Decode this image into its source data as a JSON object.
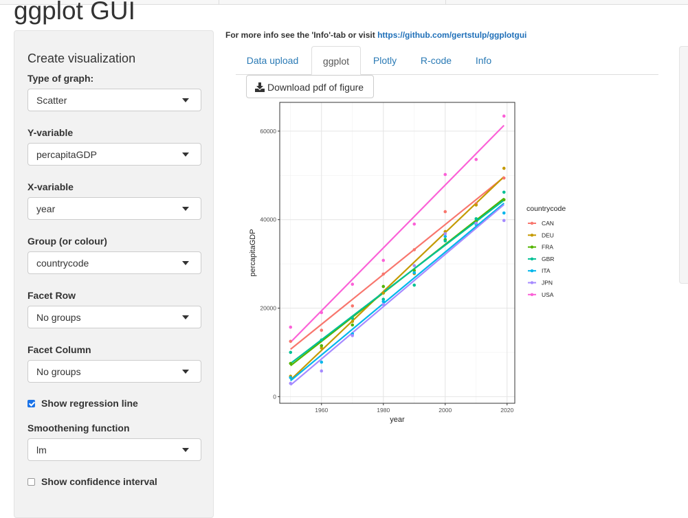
{
  "app": {
    "title": "ggplot GUI"
  },
  "sidebar": {
    "title": "Create visualization",
    "graph_type": {
      "label": "Type of graph:",
      "value": "Scatter"
    },
    "y_variable": {
      "label": "Y-variable",
      "value": "percapitaGDP"
    },
    "x_variable": {
      "label": "X-variable",
      "value": "year"
    },
    "group": {
      "label": "Group (or colour)",
      "value": "countrycode"
    },
    "facet_row": {
      "label": "Facet Row",
      "value": "No groups"
    },
    "facet_column": {
      "label": "Facet Column",
      "value": "No groups"
    },
    "regression": {
      "label": "Show regression line",
      "checked": true
    },
    "smoothing": {
      "label": "Smoothening function",
      "value": "lm"
    },
    "confidence": {
      "label": "Show confidence interval",
      "checked": false
    }
  },
  "main": {
    "info_text": "For more info see the 'Info'-tab or visit ",
    "info_link": "https://github.com/gertstulp/ggplotgui",
    "tabs": [
      {
        "label": "Data upload",
        "active": false
      },
      {
        "label": "ggplot",
        "active": true
      },
      {
        "label": "Plotly",
        "active": false
      },
      {
        "label": "R-code",
        "active": false
      },
      {
        "label": "Info",
        "active": false
      }
    ],
    "download_button": "Download pdf of figure",
    "download_icon": "download-icon"
  },
  "colors": {
    "link": "#1e6fb8",
    "checkbox_accent": "#1a73e8"
  },
  "chart_data": {
    "type": "scatter",
    "title": "",
    "xlabel": "year",
    "ylabel": "percapitaGDP",
    "xlim": [
      1946.5,
      2022.5
    ],
    "ylim": [
      -1500,
      66500
    ],
    "x_ticks": [
      1960,
      1980,
      2000,
      2020
    ],
    "x_tick_labels": [
      "1960",
      "1980",
      "2000",
      "2020"
    ],
    "y_ticks": [
      0,
      20000,
      40000,
      60000
    ],
    "y_tick_labels": [
      "0",
      "20000",
      "40000",
      "60000"
    ],
    "grid": true,
    "legend": {
      "title": "countrycode",
      "position": "right"
    },
    "regression_lines": true,
    "series": [
      {
        "name": "CAN",
        "color": "#F8766D",
        "points": [
          [
            1950,
            12500
          ],
          [
            1960,
            15000
          ],
          [
            1970,
            20500
          ],
          [
            1980,
            27700
          ],
          [
            1990,
            33200
          ],
          [
            2000,
            41800
          ],
          [
            2010,
            43600
          ],
          [
            2019,
            49400
          ]
        ],
        "fit": [
          [
            1950,
            10700
          ],
          [
            2019,
            49600
          ]
        ]
      },
      {
        "name": "DEU",
        "color": "#C49A00",
        "points": [
          [
            1950,
            4600
          ],
          [
            1960,
            11000
          ],
          [
            1970,
            17000
          ],
          [
            1980,
            23400
          ],
          [
            1990,
            27800
          ],
          [
            2000,
            37300
          ],
          [
            2010,
            43300
          ],
          [
            2019,
            51600
          ]
        ],
        "fit": [
          [
            1950,
            3800
          ],
          [
            2019,
            49700
          ]
        ]
      },
      {
        "name": "FRA",
        "color": "#53B400",
        "points": [
          [
            1950,
            7500
          ],
          [
            1960,
            11500
          ],
          [
            1970,
            16200
          ],
          [
            1980,
            24900
          ],
          [
            1990,
            28500
          ],
          [
            2000,
            35500
          ],
          [
            2010,
            39600
          ],
          [
            2019,
            44500
          ]
        ],
        "fit": [
          [
            1950,
            7000
          ],
          [
            2019,
            44800
          ]
        ]
      },
      {
        "name": "GBR",
        "color": "#00C094",
        "points": [
          [
            1950,
            10000
          ],
          [
            1960,
            12800
          ],
          [
            1970,
            17700
          ],
          [
            1980,
            22000
          ],
          [
            1990,
            25200
          ],
          [
            2000,
            35200
          ],
          [
            2010,
            40200
          ],
          [
            2019,
            46200
          ]
        ],
        "fit": [
          [
            1950,
            7500
          ],
          [
            2019,
            44400
          ]
        ]
      },
      {
        "name": "ITA",
        "color": "#00B6EB",
        "points": [
          [
            1950,
            4300
          ],
          [
            1960,
            7800
          ],
          [
            1970,
            14200
          ],
          [
            1980,
            21500
          ],
          [
            1990,
            28000
          ],
          [
            2000,
            36200
          ],
          [
            2010,
            38900
          ],
          [
            2019,
            41500
          ]
        ],
        "fit": [
          [
            1950,
            3600
          ],
          [
            2019,
            43700
          ]
        ]
      },
      {
        "name": "JPN",
        "color": "#A58AFF",
        "points": [
          [
            1950,
            3000
          ],
          [
            1960,
            5800
          ],
          [
            1970,
            13800
          ],
          [
            1980,
            20800
          ],
          [
            1990,
            29600
          ],
          [
            2000,
            36800
          ],
          [
            2010,
            39200
          ],
          [
            2019,
            39800
          ]
        ],
        "fit": [
          [
            1950,
            2600
          ],
          [
            2019,
            43400
          ]
        ]
      },
      {
        "name": "USA",
        "color": "#FB61D7",
        "points": [
          [
            1950,
            15700
          ],
          [
            1960,
            19000
          ],
          [
            1970,
            25400
          ],
          [
            1980,
            30800
          ],
          [
            1990,
            39000
          ],
          [
            2000,
            50200
          ],
          [
            2010,
            53600
          ],
          [
            2019,
            63400
          ]
        ],
        "fit": [
          [
            1950,
            12300
          ],
          [
            2019,
            61300
          ]
        ]
      }
    ]
  }
}
